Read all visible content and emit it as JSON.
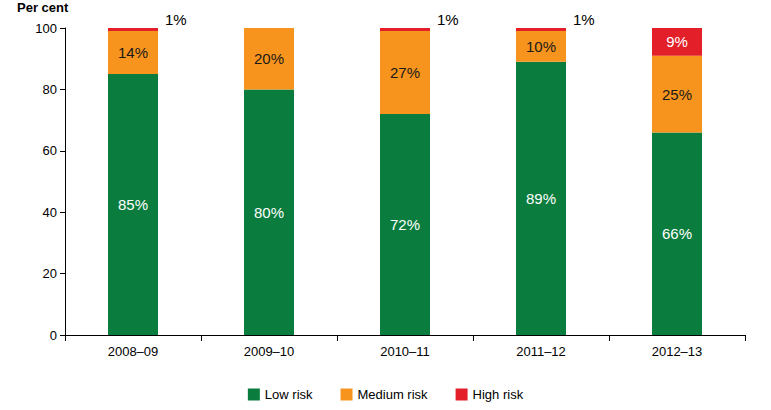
{
  "chart_data": {
    "type": "bar",
    "stacked": true,
    "data_labels": true,
    "grid": false,
    "legend": "bottom",
    "y_label": "Per cent",
    "categories": [
      "2008–09",
      "2009–10",
      "2010–11",
      "2011–12",
      "2012–13"
    ],
    "ylim": [
      0,
      100
    ],
    "yticks": [
      0,
      20,
      40,
      60,
      80,
      100
    ],
    "series": [
      {
        "name": "Low risk",
        "color": "#0a7d3e",
        "values": [
          85,
          80,
          72,
          89,
          66
        ],
        "value_labels": [
          "85%",
          "80%",
          "72%",
          "89%",
          "66%"
        ]
      },
      {
        "name": "Medium risk",
        "color": "#f7941d",
        "values": [
          14,
          20,
          27,
          10,
          25
        ],
        "value_labels": [
          "14%",
          "20%",
          "27%",
          "10%",
          "25%"
        ]
      },
      {
        "name": "High risk",
        "color": "#e3202a",
        "values": [
          1,
          0,
          1,
          1,
          9
        ],
        "value_labels": [
          "1%",
          null,
          "1%",
          "1%",
          "9%"
        ]
      }
    ]
  }
}
